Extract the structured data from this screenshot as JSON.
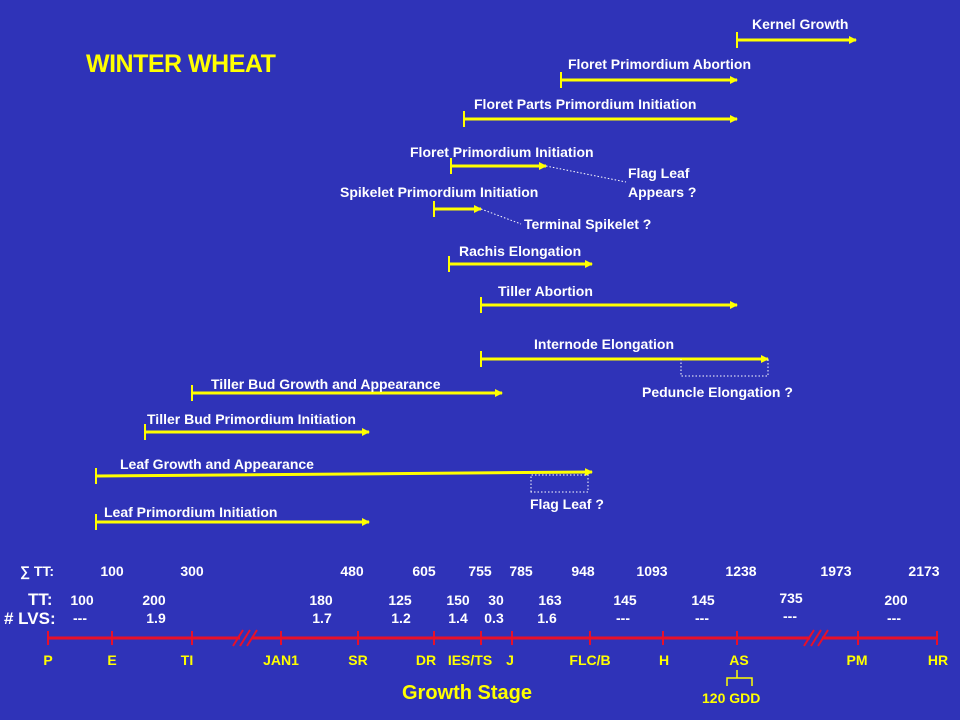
{
  "title": "WINTER WHEAT",
  "processes": [
    {
      "label": "Kernel Growth"
    },
    {
      "label": "Floret Primordium Abortion"
    },
    {
      "label": "Floret Parts Primordium Initiation"
    },
    {
      "label": "Floret Primordium Initiation"
    },
    {
      "label": "Spikelet Primordium Initiation"
    },
    {
      "label": "Rachis Elongation"
    },
    {
      "label": "Tiller Abortion"
    },
    {
      "label": "Internode Elongation"
    },
    {
      "label": "Tiller Bud Growth and Appearance"
    },
    {
      "label": "Tiller Bud Primordium Initiation"
    },
    {
      "label": "Leaf Growth and Appearance"
    },
    {
      "label": "Leaf Primordium Initiation"
    }
  ],
  "annotations": {
    "flag_leaf_appears_1": "Flag Leaf",
    "flag_leaf_appears_2": "Appears ?",
    "terminal_spikelet": "Terminal Spikelet ?",
    "peduncle_elongation": "Peduncle Elongation ?",
    "flag_leaf": "Flag Leaf ?"
  },
  "sum_tt": {
    "label": "∑ TT:",
    "values": [
      "100",
      "300",
      "480",
      "605",
      "755",
      "785",
      "948",
      "1093",
      "1238",
      "1973",
      "2173"
    ]
  },
  "tt": {
    "label": "TT:",
    "values": [
      "100",
      "200",
      "180",
      "125",
      "150",
      "30",
      "163",
      "145",
      "145",
      "735",
      "200"
    ]
  },
  "lvs": {
    "label": "# LVS:",
    "values": [
      "---",
      "1.9",
      "1.7",
      "1.2",
      "1.4",
      "0.3",
      "1.6",
      "---",
      "---",
      "---",
      "---"
    ]
  },
  "stages": [
    "P",
    "E",
    "TI",
    "JAN1",
    "SR",
    "DR",
    "IES/TS",
    "J",
    "FLC/B",
    "H",
    "AS",
    "PM",
    "HR"
  ],
  "axis_title": "Growth Stage",
  "gdd_note": "120 GDD",
  "colors": {
    "background": "#2f33b8",
    "arrow": "#ffff00",
    "axis": "#e8102a",
    "text": "#ffffff",
    "title": "#ffff00"
  }
}
